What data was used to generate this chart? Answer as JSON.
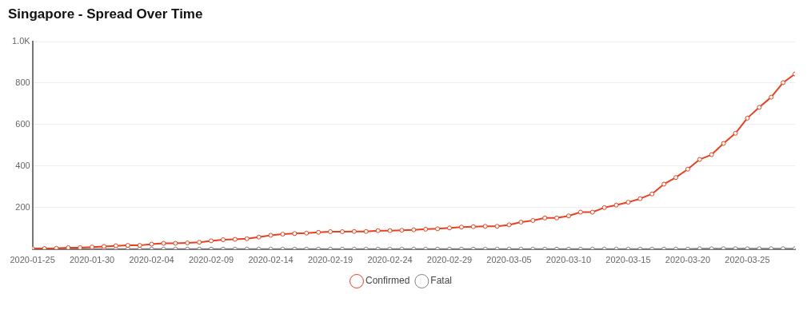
{
  "chart_data": {
    "type": "line",
    "title": "Singapore - Spread Over Time",
    "x": [
      "2020-01-25",
      "2020-01-26",
      "2020-01-27",
      "2020-01-28",
      "2020-01-29",
      "2020-01-30",
      "2020-01-31",
      "2020-02-01",
      "2020-02-02",
      "2020-02-03",
      "2020-02-04",
      "2020-02-05",
      "2020-02-06",
      "2020-02-07",
      "2020-02-08",
      "2020-02-09",
      "2020-02-10",
      "2020-02-11",
      "2020-02-12",
      "2020-02-13",
      "2020-02-14",
      "2020-02-15",
      "2020-02-16",
      "2020-02-17",
      "2020-02-18",
      "2020-02-19",
      "2020-02-20",
      "2020-02-21",
      "2020-02-22",
      "2020-02-23",
      "2020-02-24",
      "2020-02-25",
      "2020-02-26",
      "2020-02-27",
      "2020-02-28",
      "2020-02-29",
      "2020-03-01",
      "2020-03-02",
      "2020-03-03",
      "2020-03-04",
      "2020-03-05",
      "2020-03-06",
      "2020-03-07",
      "2020-03-08",
      "2020-03-09",
      "2020-03-10",
      "2020-03-11",
      "2020-03-12",
      "2020-03-13",
      "2020-03-14",
      "2020-03-15",
      "2020-03-16",
      "2020-03-17",
      "2020-03-18",
      "2020-03-19",
      "2020-03-20",
      "2020-03-21",
      "2020-03-22",
      "2020-03-23",
      "2020-03-24",
      "2020-03-25",
      "2020-03-26",
      "2020-03-27",
      "2020-03-28",
      "2020-03-29"
    ],
    "series": [
      {
        "name": "Confirmed",
        "color": "#e8411f",
        "values": [
          3,
          3,
          4,
          7,
          7,
          10,
          13,
          16,
          18,
          18,
          24,
          28,
          28,
          30,
          33,
          40,
          45,
          47,
          50,
          58,
          67,
          72,
          75,
          77,
          81,
          84,
          84,
          85,
          85,
          89,
          89,
          91,
          93,
          96,
          98,
          102,
          106,
          108,
          110,
          110,
          117,
          130,
          138,
          150,
          150,
          160,
          178,
          178,
          200,
          212,
          226,
          243,
          266,
          313,
          345,
          385,
          432,
          455,
          509,
          558,
          631,
          683,
          732,
          802,
          844
        ]
      },
      {
        "name": "Fatal",
        "color": "#7f7f7f",
        "values": [
          0,
          0,
          0,
          0,
          0,
          0,
          0,
          0,
          0,
          0,
          0,
          0,
          0,
          0,
          0,
          0,
          0,
          0,
          0,
          0,
          0,
          0,
          0,
          0,
          0,
          0,
          0,
          0,
          0,
          0,
          0,
          0,
          0,
          0,
          0,
          0,
          0,
          0,
          0,
          0,
          0,
          0,
          0,
          0,
          0,
          0,
          0,
          0,
          0,
          0,
          0,
          0,
          0,
          0,
          0,
          0,
          2,
          2,
          2,
          2,
          2,
          2,
          2,
          2,
          2
        ]
      }
    ],
    "xlim": [
      "2020-01-25",
      "2020-03-29"
    ],
    "xticks": [
      "2020-01-25",
      "2020-01-30",
      "2020-02-04",
      "2020-02-09",
      "2020-02-14",
      "2020-02-19",
      "2020-02-24",
      "2020-02-29",
      "2020-03-05",
      "2020-03-10",
      "2020-03-15",
      "2020-03-20",
      "2020-03-25"
    ],
    "ylim": [
      0,
      1000
    ],
    "yticks": [
      200,
      400,
      600,
      800,
      {
        "value": 1000,
        "label": "1.0K"
      }
    ],
    "grid": "y",
    "legend": "bottom",
    "marker": "circle",
    "line_style": "solid"
  }
}
